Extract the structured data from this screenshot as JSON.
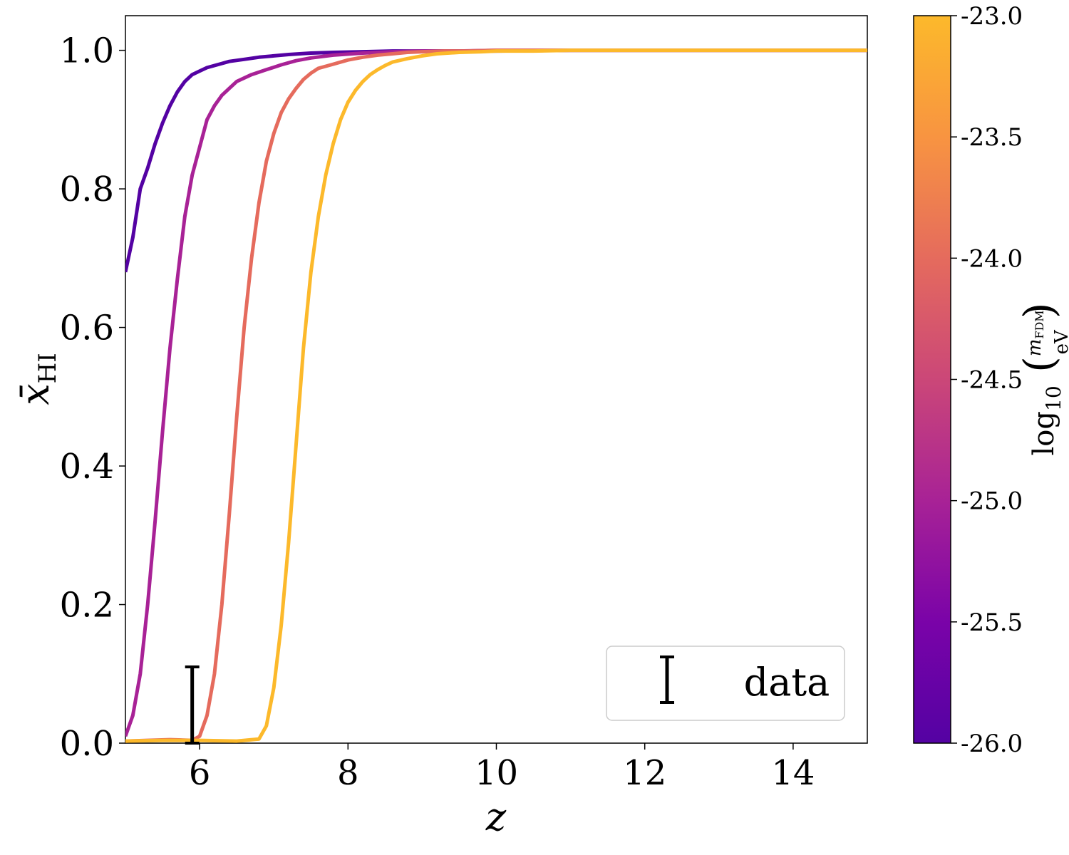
{
  "chart_data": {
    "type": "line",
    "title": "",
    "xlabel": "z",
    "ylabel": "x̄",
    "ylabel_sub": "HI",
    "xlim": [
      5,
      15
    ],
    "ylim": [
      0,
      1.05
    ],
    "x_ticks": [
      6,
      8,
      10,
      12,
      14
    ],
    "x_tick_labels": [
      "6",
      "8",
      "10",
      "12",
      "14"
    ],
    "y_ticks": [
      0.0,
      0.2,
      0.4,
      0.6,
      0.8,
      1.0
    ],
    "y_tick_labels": [
      "0.0",
      "0.2",
      "0.4",
      "0.6",
      "0.8",
      "1.0"
    ],
    "grid": false,
    "series": [
      {
        "name": "log10(m_FDM/eV) = -26.0",
        "color": "#5402a3",
        "x": [
          5.0,
          5.1,
          5.2,
          5.3,
          5.4,
          5.5,
          5.6,
          5.7,
          5.8,
          5.9,
          6.0,
          6.1,
          6.2,
          6.3,
          6.4,
          6.6,
          6.8,
          7.0,
          7.2,
          7.5,
          7.8,
          8.2,
          8.6,
          9.0,
          10.0,
          11.0,
          12.0,
          13.0,
          14.0,
          15.0
        ],
        "y": [
          0.68,
          0.73,
          0.8,
          0.83,
          0.865,
          0.895,
          0.92,
          0.94,
          0.955,
          0.965,
          0.97,
          0.975,
          0.978,
          0.981,
          0.984,
          0.987,
          0.99,
          0.992,
          0.994,
          0.996,
          0.997,
          0.998,
          0.999,
          0.999,
          0.999,
          1.0,
          1.0,
          1.0,
          1.0,
          1.0
        ]
      },
      {
        "name": "log10(m_FDM/eV) = -25.0",
        "color": "#a82296",
        "x": [
          5.0,
          5.1,
          5.2,
          5.3,
          5.4,
          5.5,
          5.6,
          5.7,
          5.8,
          5.9,
          6.0,
          6.1,
          6.2,
          6.3,
          6.4,
          6.5,
          6.7,
          6.9,
          7.1,
          7.3,
          7.5,
          7.8,
          8.2,
          8.6,
          9.0,
          9.5,
          10.0,
          11.0,
          12.0,
          13.0,
          14.0,
          15.0
        ],
        "y": [
          0.01,
          0.04,
          0.1,
          0.2,
          0.32,
          0.45,
          0.57,
          0.67,
          0.76,
          0.82,
          0.86,
          0.9,
          0.92,
          0.935,
          0.945,
          0.955,
          0.965,
          0.972,
          0.979,
          0.985,
          0.989,
          0.993,
          0.996,
          0.998,
          0.999,
          0.999,
          1.0,
          1.0,
          1.0,
          1.0,
          1.0,
          1.0
        ]
      },
      {
        "name": "log10(m_FDM/eV) = -24.0",
        "color": "#e56b5d",
        "x": [
          5.0,
          5.3,
          5.6,
          5.9,
          6.0,
          6.1,
          6.2,
          6.3,
          6.4,
          6.5,
          6.6,
          6.7,
          6.8,
          6.9,
          7.0,
          7.1,
          7.2,
          7.3,
          7.4,
          7.5,
          7.6,
          7.8,
          8.0,
          8.2,
          8.4,
          8.6,
          8.8,
          9.0,
          9.3,
          9.6,
          10.0,
          11.0,
          12.0,
          13.0,
          14.0,
          15.0
        ],
        "y": [
          0.003,
          0.004,
          0.005,
          0.004,
          0.01,
          0.04,
          0.1,
          0.2,
          0.33,
          0.47,
          0.6,
          0.7,
          0.78,
          0.84,
          0.88,
          0.91,
          0.93,
          0.945,
          0.958,
          0.967,
          0.974,
          0.98,
          0.986,
          0.99,
          0.993,
          0.995,
          0.997,
          0.998,
          0.999,
          0.999,
          1.0,
          1.0,
          1.0,
          1.0,
          1.0,
          1.0
        ]
      },
      {
        "name": "log10(m_FDM/eV) = -23.0",
        "color": "#fcb92b",
        "x": [
          5.0,
          5.5,
          6.0,
          6.5,
          6.8,
          6.9,
          7.0,
          7.1,
          7.2,
          7.3,
          7.4,
          7.5,
          7.6,
          7.7,
          7.8,
          7.9,
          8.0,
          8.1,
          8.2,
          8.3,
          8.4,
          8.5,
          8.6,
          8.8,
          9.0,
          9.2,
          9.5,
          9.8,
          10.0,
          10.5,
          11.0,
          12.0,
          13.0,
          14.0,
          15.0
        ],
        "y": [
          0.003,
          0.004,
          0.004,
          0.003,
          0.006,
          0.025,
          0.08,
          0.17,
          0.29,
          0.43,
          0.57,
          0.68,
          0.76,
          0.82,
          0.865,
          0.9,
          0.925,
          0.942,
          0.955,
          0.965,
          0.972,
          0.978,
          0.983,
          0.988,
          0.992,
          0.995,
          0.997,
          0.998,
          0.999,
          0.999,
          1.0,
          1.0,
          1.0,
          1.0,
          1.0
        ]
      }
    ],
    "errorbar": {
      "label": "data",
      "x": 5.9,
      "y_low": 0.0,
      "y_high": 0.11,
      "color": "#000000"
    },
    "legend": {
      "location": "lower-right",
      "entries": [
        "data"
      ]
    },
    "colorbar": {
      "label": "log10(m_FDM/eV)",
      "label_log": "log",
      "label_log_sub": "10",
      "label_num": "m",
      "label_num_sub": "FDM",
      "label_den": "eV",
      "range": [
        -26.0,
        -23.0
      ],
      "ticks": [
        -26.0,
        -25.5,
        -25.0,
        -24.5,
        -24.0,
        -23.5,
        -23.0
      ],
      "tick_labels": [
        "-26.0",
        "-25.5",
        "-25.0",
        "-24.5",
        "-24.0",
        "-23.5",
        "-23.0"
      ],
      "colormap": "plasma",
      "color_stops": [
        "#5402a3",
        "#7a03a8",
        "#a82296",
        "#cb4778",
        "#e56b5d",
        "#f89441",
        "#fcb92b"
      ]
    }
  }
}
